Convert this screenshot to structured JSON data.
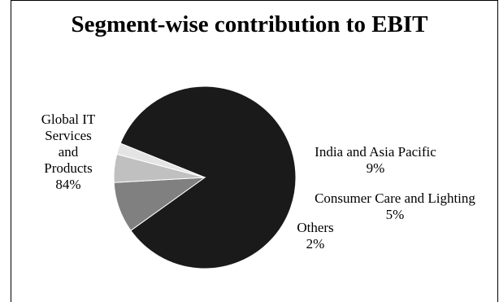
{
  "chart_data": {
    "type": "pie",
    "title": "Segment-wise contribution to EBIT",
    "slices": [
      {
        "label_lines": [
          "Global IT",
          "Services",
          "and",
          "Products"
        ],
        "percent_text": "84%",
        "value": 84,
        "color": "#1a1a1a"
      },
      {
        "label_lines": [
          "India and Asia Pacific"
        ],
        "percent_text": "9%",
        "value": 9,
        "color": "#808080"
      },
      {
        "label_lines": [
          "Consumer Care and Lighting"
        ],
        "percent_text": "5%",
        "value": 5,
        "color": "#c0c0c0"
      },
      {
        "label_lines": [
          "Others"
        ],
        "percent_text": "2%",
        "value": 2,
        "color": "#e4e4e4"
      }
    ],
    "legend": "none"
  }
}
